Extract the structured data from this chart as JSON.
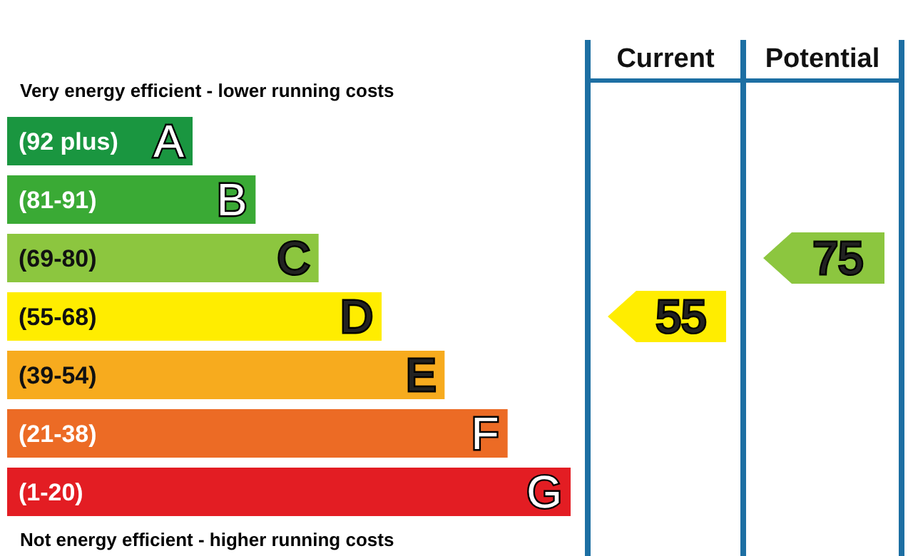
{
  "chart_data": {
    "type": "other",
    "categories": [
      "(92 plus)",
      "(81-91)",
      "(69-80)",
      "(55-68)",
      "(39-54)",
      "(21-38)",
      "(1-20)"
    ],
    "value_labels": [
      "A",
      "B",
      "C",
      "D",
      "E",
      "F",
      "G"
    ],
    "colors": [
      "#1a9640",
      "#3aaa35",
      "#8cc63f",
      "#ffed00",
      "#f7ab1e",
      "#ec6b25",
      "#e31d23"
    ],
    "series": [
      {
        "values": [
          null,
          null,
          null,
          55,
          null,
          null,
          null
        ]
      },
      {
        "values": [
          null,
          null,
          75,
          null,
          null,
          null,
          null
        ]
      }
    ],
    "data_labels": true,
    "annotations": [
      "Very energy efficient - lower running costs",
      "Not energy efficient - higher running costs",
      "Current",
      "Potential"
    ]
  }
}
